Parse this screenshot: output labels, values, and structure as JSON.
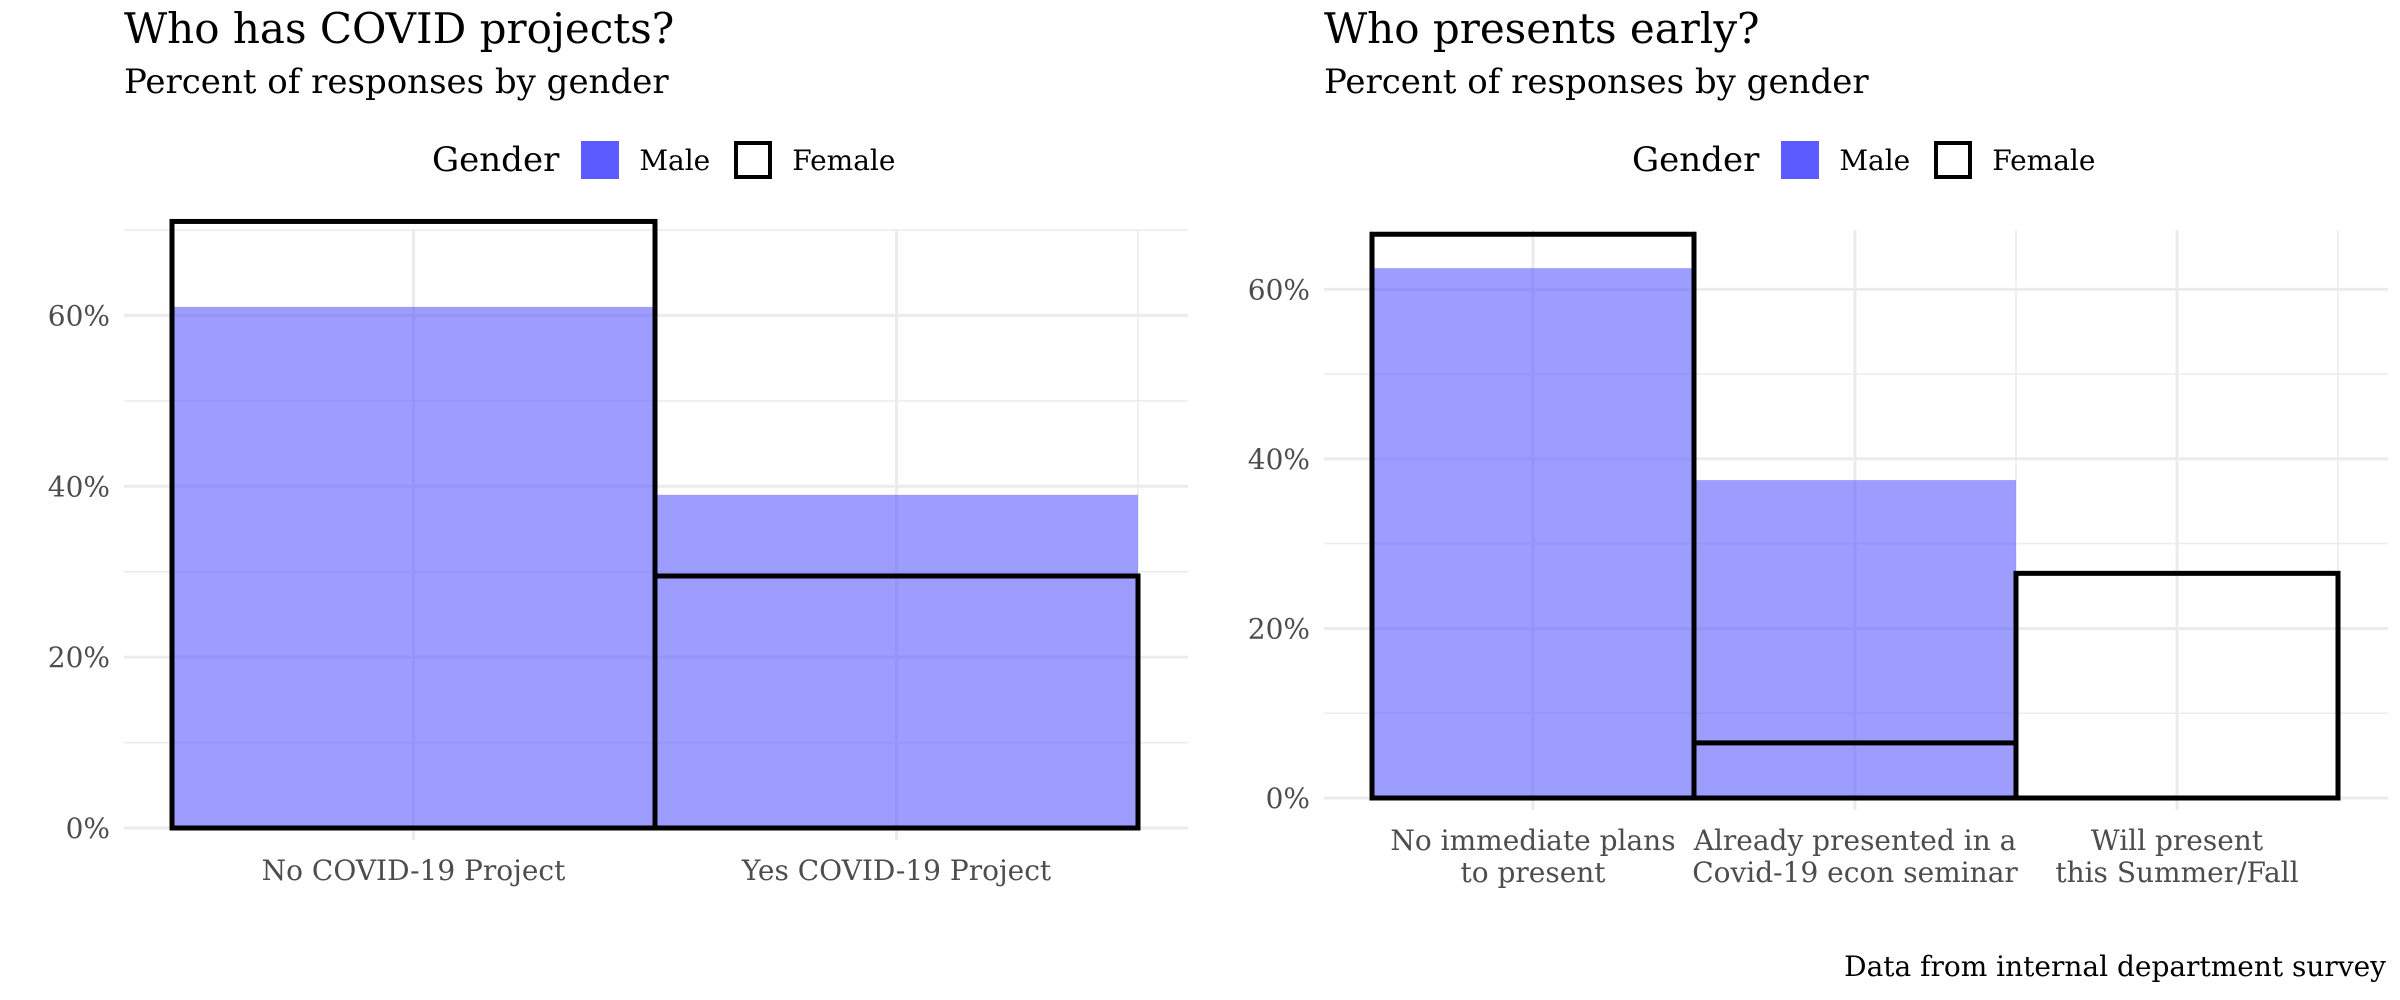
{
  "legend": {
    "title": "Gender",
    "male": "Male",
    "female": "Female"
  },
  "colors": {
    "male_fill": "#5b5bff",
    "female_stroke": "#000000",
    "grid": "#ebebeb"
  },
  "caption": "Data from internal department survey",
  "chart_data": [
    {
      "type": "bar",
      "title": "Who has COVID projects?",
      "subtitle": "Percent of responses by gender",
      "categories": [
        [
          "No COVID-19 Project"
        ],
        [
          "Yes COVID-19 Project"
        ]
      ],
      "ylim": [
        0,
        0.7
      ],
      "yticks": [
        0,
        0.2,
        0.4,
        0.6
      ],
      "yticklabels": [
        "0%",
        "20%",
        "40%",
        "60%"
      ],
      "series": [
        {
          "name": "Male",
          "values": [
            0.61,
            0.39
          ]
        },
        {
          "name": "Female",
          "values": [
            0.71,
            0.295
          ]
        }
      ],
      "legend_position": "top",
      "grid": true
    },
    {
      "type": "bar",
      "title": "Who presents early?",
      "subtitle": "Percent of responses by gender",
      "categories": [
        [
          "No immediate plans",
          "to present"
        ],
        [
          "Already presented in a",
          "Covid-19 econ seminar"
        ],
        [
          "Will present",
          "this Summer/Fall"
        ]
      ],
      "ylim": [
        0,
        0.67
      ],
      "yticks": [
        0,
        0.2,
        0.4,
        0.6
      ],
      "yticklabels": [
        "0%",
        "20%",
        "40%",
        "60%"
      ],
      "series": [
        {
          "name": "Male",
          "values": [
            0.625,
            0.375,
            0.0
          ]
        },
        {
          "name": "Female",
          "values": [
            0.665,
            0.065,
            0.265
          ]
        }
      ],
      "legend_position": "top",
      "grid": true
    }
  ]
}
